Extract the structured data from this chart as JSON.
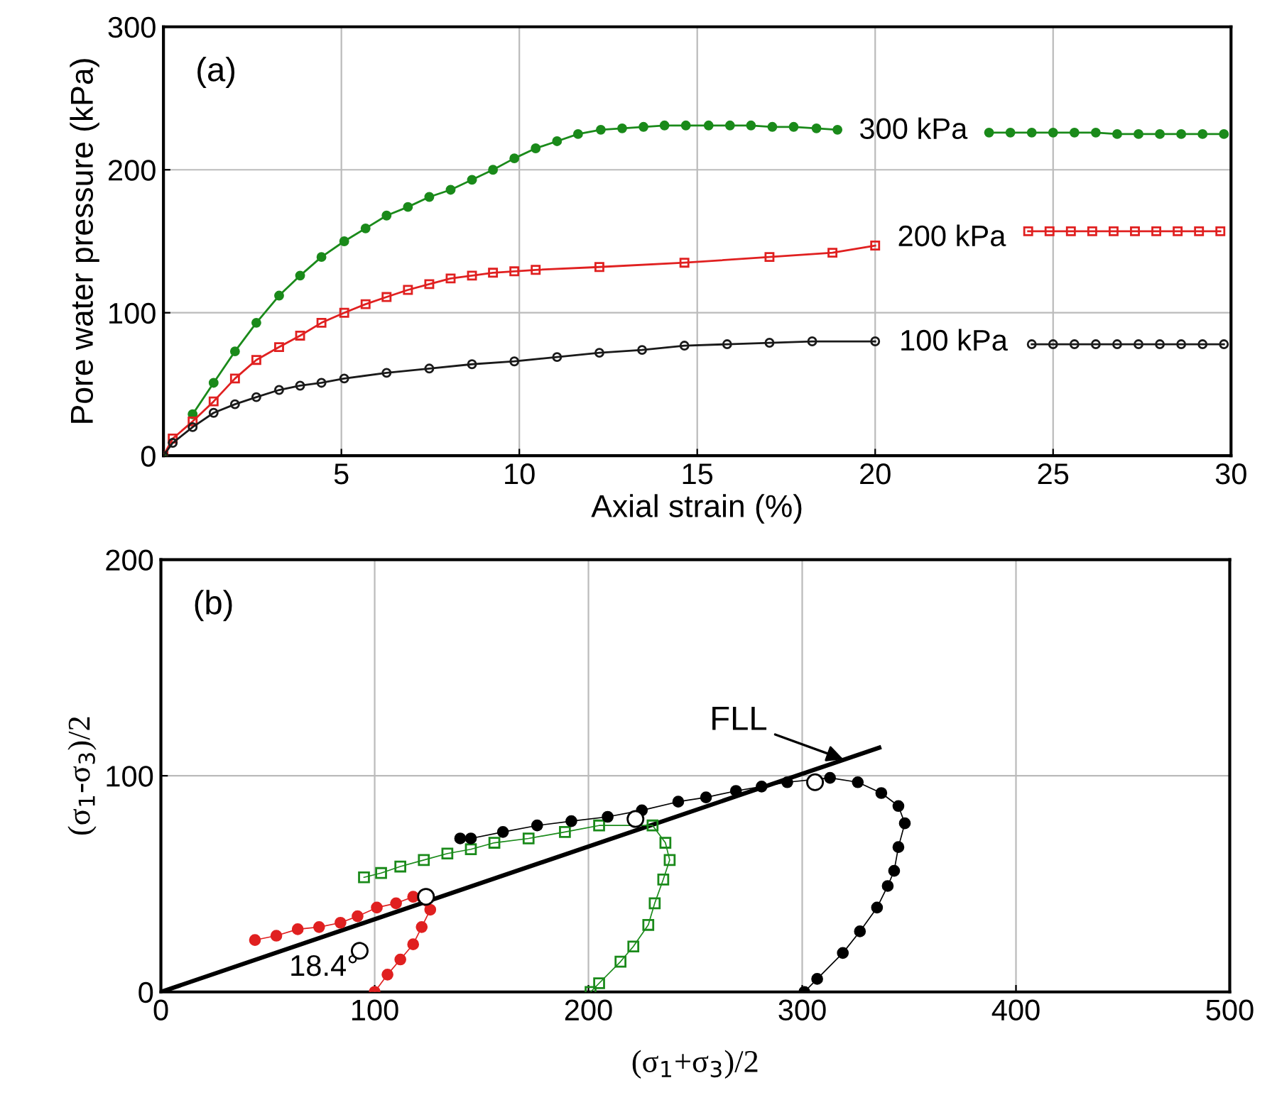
{
  "chart_data": [
    {
      "type": "line",
      "xlabel": "Axial strain (%)",
      "ylabel": "Pore water pressure (kPa)",
      "annotations": [
        "(a)"
      ],
      "xlim": [
        0,
        30
      ],
      "ylim": [
        0,
        300
      ],
      "xticks": [
        5,
        10,
        15,
        20,
        25,
        30
      ],
      "yticks": [
        0,
        100,
        200,
        300
      ],
      "grid": true,
      "line_style": "solid",
      "legend": false,
      "series": [
        {
          "name": "300 kPa",
          "color": "#1a8a1a",
          "marker": "circle",
          "x": [
            0,
            0.26,
            0.82,
            1.41,
            2.01,
            2.61,
            3.25,
            3.84,
            4.44,
            5.08,
            5.68,
            6.27,
            6.87,
            7.47,
            8.07,
            8.67,
            9.26,
            9.86,
            10.46,
            11.06,
            11.65,
            12.29,
            12.89,
            13.49,
            14.08,
            14.68,
            15.32,
            15.92,
            16.51,
            17.11,
            17.71,
            18.35,
            18.94,
            21,
            23.2,
            23.8,
            24.4,
            25.0,
            25.6,
            26.2,
            26.8,
            27.4,
            28.0,
            28.6,
            29.2,
            29.8
          ],
          "values": [
            0,
            null,
            29,
            51,
            73,
            93,
            112,
            126,
            139,
            150,
            159,
            168,
            174,
            181,
            186,
            193,
            200,
            208,
            215,
            220,
            225,
            228,
            229,
            230,
            231,
            231,
            231,
            231,
            231,
            230,
            230,
            229,
            228,
            null,
            226,
            226,
            226,
            226,
            226,
            226,
            225,
            225,
            225,
            225,
            225,
            225
          ]
        },
        {
          "name": "200 kPa",
          "color": "#e02020",
          "marker": "square",
          "x": [
            0,
            0.26,
            0.82,
            1.41,
            2.01,
            2.61,
            3.25,
            3.84,
            4.44,
            5.08,
            5.68,
            6.27,
            6.87,
            7.47,
            8.07,
            8.67,
            9.26,
            9.86,
            10.46,
            12.25,
            14.64,
            17.03,
            18.8,
            20,
            22,
            24.3,
            24.9,
            25.5,
            26.1,
            26.7,
            27.3,
            27.9,
            28.5,
            29.1,
            29.7
          ],
          "values": [
            0,
            12,
            24,
            38,
            54,
            67,
            76,
            84,
            93,
            100,
            106,
            111,
            116,
            120,
            124,
            126,
            128,
            129,
            130,
            132,
            135,
            139,
            142,
            147,
            null,
            157,
            157,
            157,
            157,
            157,
            157,
            157,
            157,
            157,
            157
          ]
        },
        {
          "name": "100 kPa",
          "color": "#1a1a1a",
          "marker": "circle",
          "x": [
            0,
            0.26,
            0.82,
            1.41,
            2.01,
            2.61,
            3.25,
            3.84,
            4.44,
            5.08,
            6.27,
            7.47,
            8.67,
            9.86,
            11.06,
            12.25,
            13.45,
            14.64,
            15.84,
            17.03,
            18.23,
            20,
            22,
            24.4,
            25.0,
            25.6,
            26.2,
            26.8,
            27.4,
            28.0,
            28.6,
            29.2,
            29.8
          ],
          "values": [
            0,
            9,
            20,
            30,
            36,
            41,
            46,
            49,
            51,
            54,
            58,
            61,
            64,
            66,
            69,
            72,
            74,
            77,
            78,
            79,
            80,
            80,
            null,
            78,
            78,
            78,
            78,
            78,
            78,
            78,
            78,
            78,
            78
          ]
        }
      ]
    },
    {
      "type": "scatter",
      "xlabel": "(σ$_{1}$+σ$_{3}$)/2",
      "ylabel": "(σ$_{1}$-σ$_{3}$)/2",
      "xlim": [
        0,
        500
      ],
      "ylim": [
        0,
        200
      ],
      "xticks": [
        0,
        100,
        200,
        300,
        400,
        500
      ],
      "yticks": [
        0,
        100,
        200
      ],
      "grid": true,
      "legend": false,
      "annotations": [
        "(b)",
        {
          "text": "FLL",
          "x": 321,
          "y": 107
        },
        "18.4°"
      ],
      "series": [
        {
          "type": "line",
          "color": "#000000",
          "marker": "none",
          "x": [
            0,
            336
          ],
          "values": [
            0,
            113
          ]
        },
        {
          "type": "line",
          "color": "#e02020",
          "marker": "circle",
          "x": [
            100,
            106,
            112,
            118,
            122,
            126,
            118,
            110,
            101,
            92,
            84,
            74,
            64,
            54,
            44
          ],
          "values": [
            0,
            8,
            15,
            22,
            30,
            38,
            44,
            41,
            39,
            35,
            32,
            30,
            29,
            26,
            24
          ]
        },
        {
          "type": "line",
          "color": "#1a8a1a",
          "marker": "square",
          "x": [
            201,
            205,
            215,
            221,
            228,
            231,
            235,
            238,
            236,
            230,
            205,
            189,
            172,
            156,
            145,
            134,
            123,
            112,
            103,
            95
          ],
          "values": [
            0,
            4,
            14,
            21,
            31,
            41,
            52,
            61,
            69,
            77,
            77,
            74,
            71,
            69,
            66,
            64,
            61,
            58,
            55,
            53
          ]
        },
        {
          "type": "line",
          "color": "#000000",
          "marker": "circle",
          "x": [
            301,
            307,
            319,
            327,
            335,
            340,
            343,
            345,
            348,
            345,
            337,
            326,
            313,
            293,
            281,
            269,
            255,
            242,
            225,
            209,
            192,
            176,
            160,
            145,
            140
          ],
          "values": [
            0,
            6,
            18,
            28,
            39,
            49,
            56,
            67,
            78,
            86,
            92,
            97,
            99,
            97,
            95,
            93,
            90,
            88,
            84,
            81,
            79,
            77,
            74,
            71,
            71
          ]
        },
        {
          "color": "#000000",
          "marker": "circle",
          "x": [
            124,
            222,
            306,
            93
          ],
          "values": [
            44,
            80,
            97,
            19
          ]
        }
      ]
    }
  ]
}
